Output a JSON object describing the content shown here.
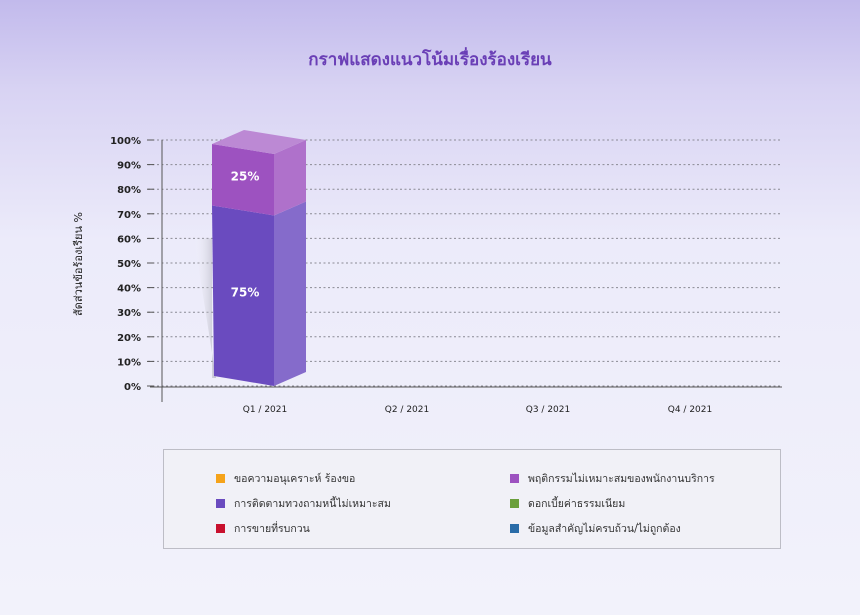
{
  "chart_data": {
    "type": "bar",
    "stacked": true,
    "three_d": true,
    "title": "กราฟแสดงแนวโน้มเรื่องร้องเรียน",
    "ylabel": "สัดส่วนข้อร้องเรียน %",
    "xlabel": "",
    "categories": [
      "Q1 / 2021",
      "Q2 / 2021",
      "Q3 / 2021",
      "Q4 / 2021"
    ],
    "ylim": [
      0,
      100
    ],
    "yticks": [
      "0%",
      "10%",
      "20%",
      "30%",
      "40%",
      "50%",
      "60%",
      "70%",
      "80%",
      "90%",
      "100%"
    ],
    "grid": true,
    "series": [
      {
        "name": "ขอความอนุเคราะห์ ร้องขอ",
        "values": [
          0,
          0,
          0,
          0
        ],
        "color": "#f5a31a"
      },
      {
        "name": "การติดตามทวงถามหนี้ไม่เหมาะสม",
        "values": [
          75,
          0,
          0,
          0
        ],
        "color": "#6a4bbf",
        "labels": [
          "75%",
          "",
          "",
          ""
        ]
      },
      {
        "name": "การขายที่รบกวน",
        "values": [
          0,
          0,
          0,
          0
        ],
        "color": "#c8102e"
      },
      {
        "name": "พฤติกรรมไม่เหมาะสมของพนักงานบริการ",
        "values": [
          25,
          0,
          0,
          0
        ],
        "color": "#9d52c0",
        "labels": [
          "25%",
          "",
          "",
          ""
        ]
      },
      {
        "name": "ดอกเบี้ยค่าธรรมเนียม",
        "values": [
          0,
          0,
          0,
          0
        ],
        "color": "#6a9f3b"
      },
      {
        "name": "ข้อมูลสำคัญไม่ครบถ้วน/ไม่ถูกต้อง",
        "values": [
          0,
          0,
          0,
          0
        ],
        "color": "#2a6ca8"
      }
    ],
    "legend_position": "bottom"
  },
  "legend": {
    "items": [
      {
        "label": "ขอความอนุเคราะห์ ร้องขอ",
        "color": "#f5a31a"
      },
      {
        "label": "พฤติกรรมไม่เหมาะสมของพนักงานบริการ",
        "color": "#9d52c0"
      },
      {
        "label": "การติดตามทวงถามหนี้ไม่เหมาะสม",
        "color": "#6a4bbf"
      },
      {
        "label": "ดอกเบี้ยค่าธรรมเนียม",
        "color": "#6a9f3b"
      },
      {
        "label": "การขายที่รบกวน",
        "color": "#c8102e"
      },
      {
        "label": "ข้อมูลสำคัญไม่ครบถ้วน/ไม่ถูกต้อง",
        "color": "#2a6ca8"
      }
    ]
  }
}
